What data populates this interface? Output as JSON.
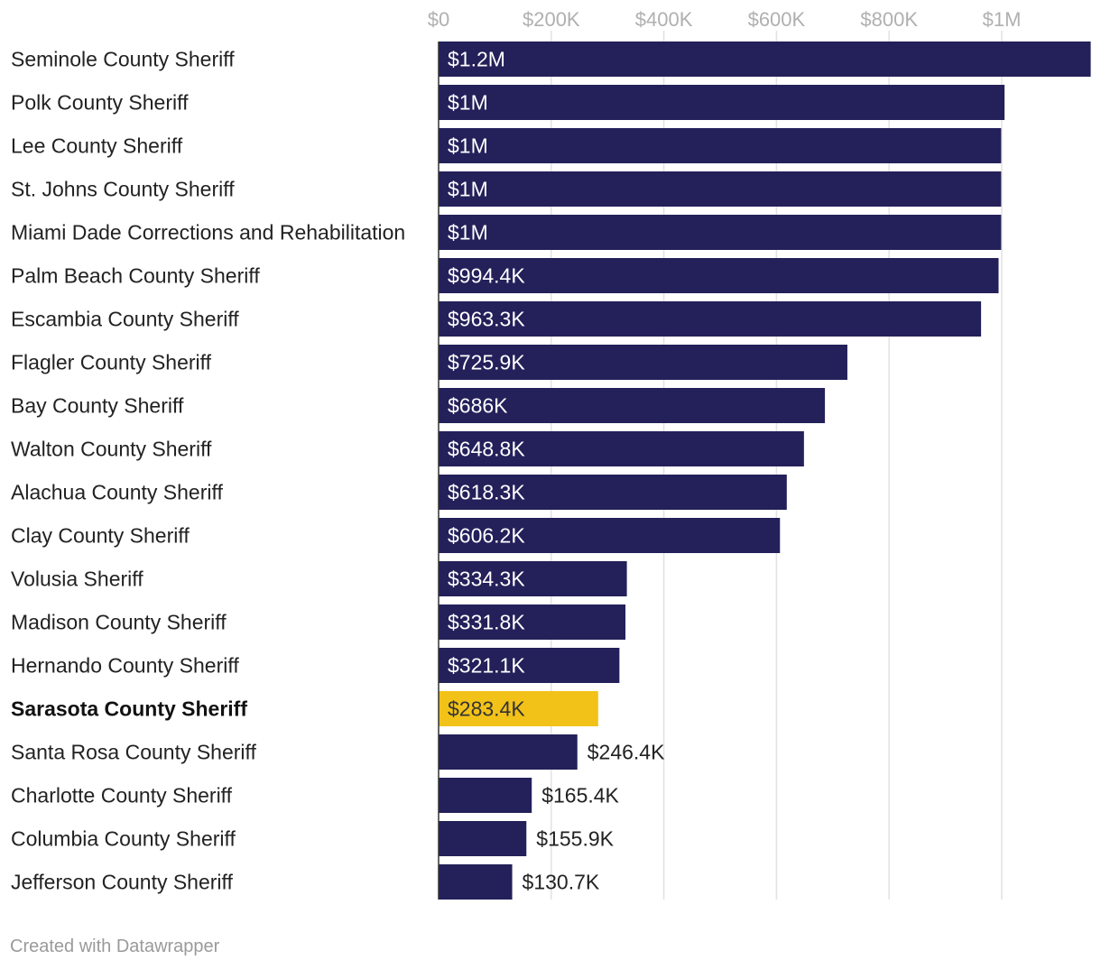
{
  "chart_data": {
    "type": "bar",
    "orientation": "horizontal",
    "xlim": [
      0,
      1160000
    ],
    "ticks": [
      {
        "value": 0,
        "label": "$0"
      },
      {
        "value": 200000,
        "label": "$200K"
      },
      {
        "value": 400000,
        "label": "$400K"
      },
      {
        "value": 600000,
        "label": "$600K"
      },
      {
        "value": 800000,
        "label": "$800K"
      },
      {
        "value": 1000000,
        "label": "$1M"
      }
    ],
    "bars": [
      {
        "category": "Seminole County Sheriff",
        "value": 1158000,
        "label": "$1.2M"
      },
      {
        "category": "Polk County Sheriff",
        "value": 1005000,
        "label": "$1M"
      },
      {
        "category": "Lee County Sheriff",
        "value": 999000,
        "label": "$1M"
      },
      {
        "category": "St. Johns County Sheriff",
        "value": 999000,
        "label": "$1M"
      },
      {
        "category": "Miami Dade Corrections and Rehabilitation",
        "value": 999000,
        "label": "$1M"
      },
      {
        "category": "Palm Beach County Sheriff",
        "value": 994400,
        "label": "$994.4K"
      },
      {
        "category": "Escambia County Sheriff",
        "value": 963300,
        "label": "$963.3K"
      },
      {
        "category": "Flagler County Sheriff",
        "value": 725900,
        "label": "$725.9K"
      },
      {
        "category": "Bay County Sheriff",
        "value": 686000,
        "label": "$686K"
      },
      {
        "category": "Walton County Sheriff",
        "value": 648800,
        "label": "$648.8K"
      },
      {
        "category": "Alachua County Sheriff",
        "value": 618300,
        "label": "$618.3K"
      },
      {
        "category": "Clay County Sheriff",
        "value": 606200,
        "label": "$606.2K"
      },
      {
        "category": "Volusia Sheriff",
        "value": 334300,
        "label": "$334.3K"
      },
      {
        "category": "Madison County Sheriff",
        "value": 331800,
        "label": "$331.8K"
      },
      {
        "category": "Hernando County Sheriff",
        "value": 321100,
        "label": "$321.1K"
      },
      {
        "category": "Sarasota County Sheriff",
        "value": 283400,
        "label": "$283.4K",
        "highlight": true
      },
      {
        "category": "Santa Rosa County Sheriff",
        "value": 246400,
        "label": "$246.4K"
      },
      {
        "category": "Charlotte County Sheriff",
        "value": 165400,
        "label": "$165.4K"
      },
      {
        "category": "Columbia County Sheriff",
        "value": 155900,
        "label": "$155.9K"
      },
      {
        "category": "Jefferson County Sheriff",
        "value": 130700,
        "label": "$130.7K"
      }
    ],
    "colors": {
      "bar": "#23205a",
      "highlight": "#f2c218",
      "grid": "#e2e2e2",
      "label_inside": "#ffffff",
      "label_outside": "#222222",
      "label_on_highlight": "#333333"
    }
  },
  "footer": {
    "text": "Created with Datawrapper"
  }
}
